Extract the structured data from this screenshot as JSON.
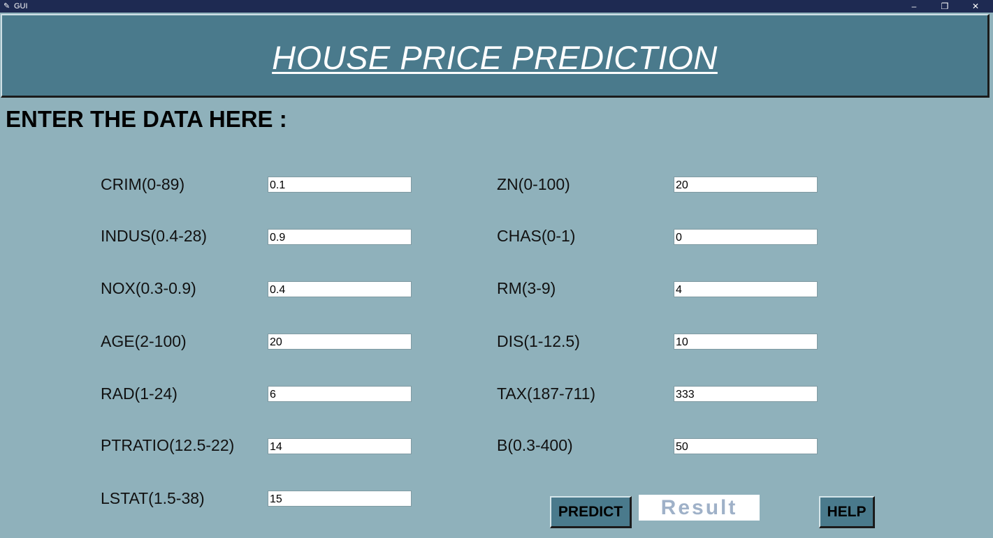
{
  "window": {
    "title": "GUI",
    "icon": "feather-icon",
    "controls": {
      "minimize": "–",
      "maximize": "❐",
      "close": "✕"
    }
  },
  "header": {
    "title": "HOUSE PRICE PREDICTION"
  },
  "section": {
    "heading": "ENTER THE DATA HERE :"
  },
  "fields": {
    "crim": {
      "label": "CRIM(0-89)",
      "value": "0.1"
    },
    "indus": {
      "label": "INDUS(0.4-28)",
      "value": "0.9"
    },
    "nox": {
      "label": "NOX(0.3-0.9)",
      "value": "0.4"
    },
    "age": {
      "label": "AGE(2-100)",
      "value": "20"
    },
    "rad": {
      "label": "RAD(1-24)",
      "value": "6"
    },
    "ptratio": {
      "label": "PTRATIO(12.5-22)",
      "value": "14"
    },
    "lstat": {
      "label": "LSTAT(1.5-38)",
      "value": "15"
    },
    "zn": {
      "label": "ZN(0-100)",
      "value": "20"
    },
    "chas": {
      "label": "CHAS(0-1)",
      "value": "0"
    },
    "rm": {
      "label": "RM(3-9)",
      "value": "4"
    },
    "dis": {
      "label": "DIS(1-12.5)",
      "value": "10"
    },
    "tax": {
      "label": "TAX(187-711)",
      "value": "333"
    },
    "b": {
      "label": "B(0.3-400)",
      "value": "50"
    }
  },
  "buttons": {
    "predict": "PREDICT",
    "help": "HELP"
  },
  "result": {
    "label": "Result"
  },
  "colors": {
    "titlebar": "#1e2a52",
    "header_bg": "#4a7a8c",
    "page_bg": "#8fb1bb",
    "result_text": "#9fb1c8"
  }
}
